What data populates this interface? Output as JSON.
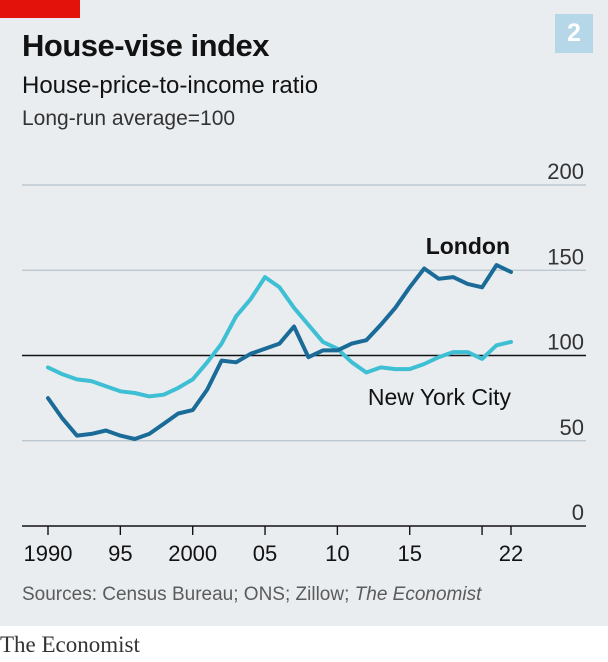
{
  "header": {
    "badge": "2",
    "title": "House-vise index",
    "subtitle": "House-price-to-income ratio",
    "note": "Long-run average=100"
  },
  "footer": {
    "source_prefix": "Sources: Census Bureau; ONS; Zillow; ",
    "source_italic": "The Economist",
    "brand": "The Economist"
  },
  "colors": {
    "london": "#1a6b98",
    "new_york": "#3ebfd4",
    "grid": "#b7c3cb",
    "baseline": "#121212",
    "red_tag": "#e3120b"
  },
  "chart_data": {
    "type": "line",
    "title": "House-vise index",
    "subtitle": "House-price-to-income ratio",
    "ylabel": "Long-run average=100",
    "ylim": [
      0,
      200
    ],
    "yticks": [
      0,
      50,
      100,
      150,
      200
    ],
    "ytick_labels": [
      "0",
      "50",
      "100",
      "150",
      "200"
    ],
    "xlim": [
      1990,
      2022
    ],
    "xticks": [
      1990,
      1995,
      2000,
      2005,
      2010,
      2015,
      2022
    ],
    "xtick_labels": [
      "1990",
      "95",
      "2000",
      "05",
      "10",
      "15",
      "22"
    ],
    "reference_line": 100,
    "grid": true,
    "series": [
      {
        "name": "London",
        "x": [
          1990,
          1991,
          1992,
          1993,
          1994,
          1995,
          1996,
          1997,
          1998,
          1999,
          2000,
          2001,
          2002,
          2003,
          2004,
          2005,
          2006,
          2007,
          2008,
          2009,
          2010,
          2011,
          2012,
          2013,
          2014,
          2015,
          2016,
          2017,
          2018,
          2019,
          2020,
          2021,
          2022
        ],
        "values": [
          75,
          63,
          53,
          54,
          56,
          53,
          51,
          54,
          60,
          66,
          68,
          80,
          97,
          96,
          101,
          104,
          107,
          117,
          99,
          103,
          103,
          107,
          109,
          118,
          128,
          140,
          151,
          145,
          146,
          142,
          140,
          153,
          149
        ]
      },
      {
        "name": "New York City",
        "x": [
          1990,
          1991,
          1992,
          1993,
          1994,
          1995,
          1996,
          1997,
          1998,
          1999,
          2000,
          2001,
          2002,
          2003,
          2004,
          2005,
          2006,
          2007,
          2008,
          2009,
          2010,
          2011,
          2012,
          2013,
          2014,
          2015,
          2016,
          2017,
          2018,
          2019,
          2020,
          2021,
          2022
        ],
        "values": [
          93,
          89,
          86,
          85,
          82,
          79,
          78,
          76,
          77,
          81,
          86,
          96,
          107,
          123,
          133,
          146,
          140,
          128,
          118,
          108,
          104,
          96,
          90,
          93,
          92,
          92,
          95,
          99,
          102,
          102,
          98,
          106,
          108
        ]
      }
    ],
    "series_labels": [
      "London",
      "New York City"
    ]
  }
}
